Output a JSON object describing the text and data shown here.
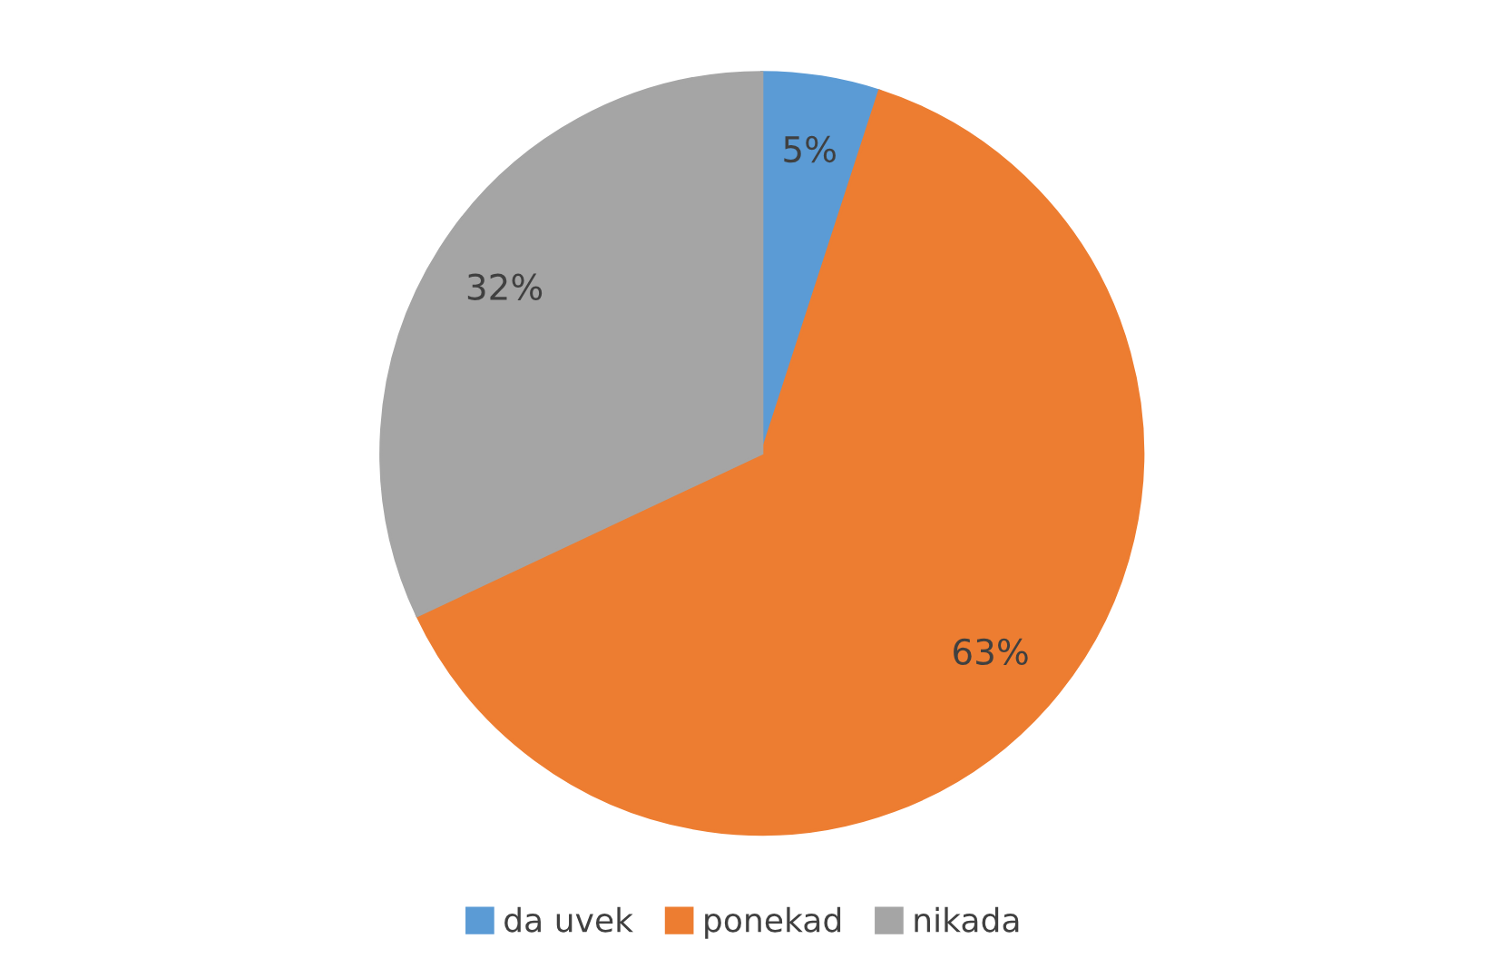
{
  "chart_data": {
    "type": "pie",
    "categories": [
      "da uvek",
      "ponekad",
      "nikada"
    ],
    "values": [
      5,
      63,
      32
    ],
    "colors": [
      "#5b9bd5",
      "#ed7d31",
      "#a5a5a5"
    ],
    "value_labels": [
      "5%",
      "63%",
      "32%"
    ],
    "legend": "bottom"
  }
}
